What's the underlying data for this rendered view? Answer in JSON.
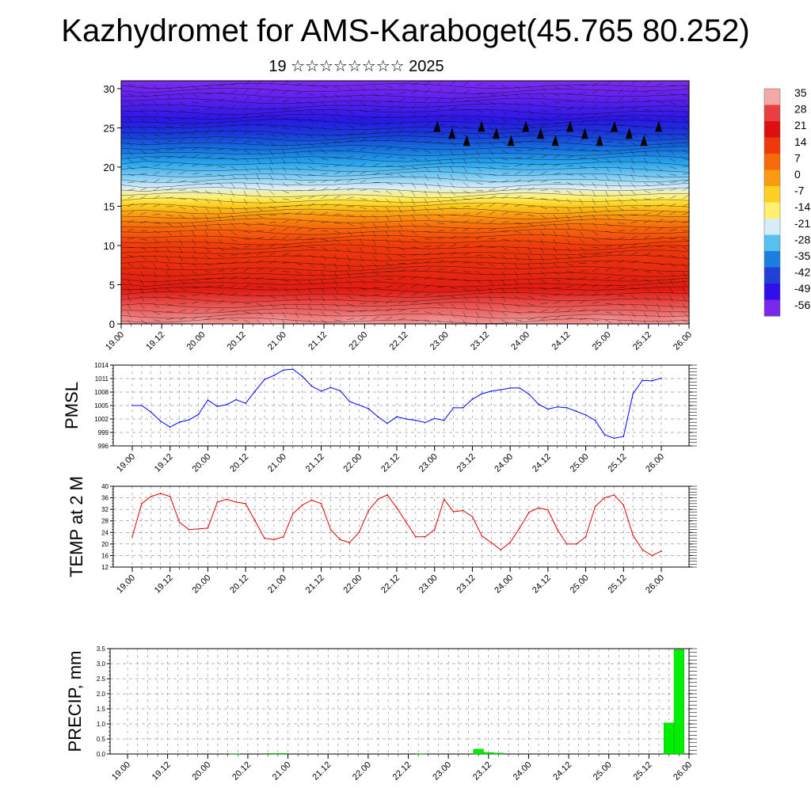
{
  "title": "Kazhydromet for AMS-Karaboget(45.765 80.252)",
  "subtitle": "19 ☆☆☆☆☆☆☆☆ 2025",
  "time_labels": [
    "19.00",
    "19.12",
    "20.00",
    "20.12",
    "21.00",
    "21.12",
    "22.00",
    "22.12",
    "23.00",
    "23.12",
    "24.00",
    "24.12",
    "25.00",
    "25.12",
    "26.00"
  ],
  "chart_data": [
    {
      "type": "heatmap",
      "name": "cross-section",
      "xlabel": "",
      "ylabel": "",
      "x_ticks": [
        "19.00",
        "19.12",
        "20.00",
        "20.12",
        "21.00",
        "21.12",
        "22.00",
        "22.12",
        "23.00",
        "23.12",
        "24.00",
        "24.12",
        "25.00",
        "25.12",
        "26.00"
      ],
      "y_ticks": [
        0,
        5,
        10,
        15,
        20,
        25,
        30
      ],
      "ylim": [
        0,
        31
      ],
      "colorbar": {
        "labels": [
          "35",
          "28",
          "21",
          "14",
          "7",
          "0",
          "-7",
          "-14",
          "-21",
          "-28",
          "-35",
          "-42",
          "-49",
          "-56"
        ],
        "colors": [
          "#f4a8a8",
          "#e84040",
          "#dd1010",
          "#ee3a0a",
          "#f66a0a",
          "#f99c10",
          "#fcd020",
          "#fff070",
          "#d8ecf8",
          "#58c0f0",
          "#1a80e0",
          "#2040d8",
          "#3010e8",
          "#7a28ec"
        ]
      }
    },
    {
      "type": "line",
      "name": "pmsl",
      "ylabel": "PMSL",
      "ylim": [
        996,
        1014
      ],
      "y_ticks": [
        996,
        999,
        1002,
        1005,
        1008,
        1011,
        1014
      ],
      "color": "#0000ff",
      "x": [
        0,
        3,
        6,
        9,
        12,
        15,
        18,
        21,
        24,
        27,
        30,
        33,
        36,
        39,
        42,
        45,
        48,
        51,
        54,
        57,
        60,
        63,
        66,
        69,
        72,
        75,
        78,
        81,
        84,
        87,
        90,
        93,
        96,
        99,
        102,
        105,
        108,
        111,
        114,
        117,
        120,
        123,
        126,
        129,
        132,
        135,
        138,
        141,
        144,
        147,
        150,
        153,
        156,
        159,
        162,
        165,
        168
      ],
      "values": [
        1005,
        1005,
        1003.5,
        1001.5,
        1000.2,
        1001.3,
        1001.8,
        1003,
        1006.2,
        1004.8,
        1005.2,
        1006.3,
        1005.5,
        1008.2,
        1010.8,
        1011.7,
        1012.9,
        1013.1,
        1011.5,
        1009.3,
        1008.2,
        1009,
        1008.3,
        1005.9,
        1005.1,
        1004.3,
        1002.5,
        1001,
        1002.5,
        1002,
        1001.7,
        1001.2,
        1002.1,
        1001.7,
        1004.5,
        1004.5,
        1006.4,
        1007.6,
        1008.2,
        1008.5,
        1008.9,
        1008.9,
        1007.5,
        1005.3,
        1004.2,
        1004.7,
        1004.5,
        1003.7,
        1002.9,
        1001.7,
        998.5,
        997.7,
        998.1,
        1007.6,
        1010.6,
        1010.5,
        1011.1
      ]
    },
    {
      "type": "line",
      "name": "temp2m",
      "ylabel": "TEMP at 2 M",
      "ylim": [
        12,
        40
      ],
      "y_ticks": [
        12,
        16,
        20,
        24,
        28,
        32,
        36,
        40
      ],
      "color": "#e00000",
      "x": [
        0,
        3,
        6,
        9,
        12,
        15,
        18,
        21,
        24,
        27,
        30,
        33,
        36,
        39,
        42,
        45,
        48,
        51,
        54,
        57,
        60,
        63,
        66,
        69,
        72,
        75,
        78,
        81,
        84,
        87,
        90,
        93,
        96,
        99,
        102,
        105,
        108,
        111,
        114,
        117,
        120,
        123,
        126,
        129,
        132,
        135,
        138,
        141,
        144,
        147,
        150,
        153,
        156,
        159,
        162,
        165,
        168
      ],
      "values": [
        22.5,
        34,
        36.5,
        37.5,
        36.5,
        27.5,
        25,
        25.2,
        25.5,
        34.5,
        35.5,
        34.5,
        34,
        28,
        22,
        21.5,
        22.5,
        30.5,
        33.5,
        35.2,
        34,
        25,
        21.5,
        20.5,
        24,
        31.5,
        35.5,
        37,
        32.5,
        27.5,
        22.5,
        22.5,
        25,
        35.5,
        31.2,
        31.6,
        29.5,
        22.8,
        20.5,
        18,
        20.5,
        25.5,
        31,
        32.5,
        31.8,
        25,
        20,
        20,
        22.5,
        33,
        36,
        37,
        33.5,
        23,
        18,
        16,
        17.5
      ]
    },
    {
      "type": "bar",
      "name": "precip",
      "ylabel": "PRECIP, mm",
      "ylim": [
        0,
        3.5
      ],
      "y_ticks": [
        "0.0",
        "0.5",
        "1.0",
        "1.5",
        "2.0",
        "2.5",
        "3.0",
        "3.5"
      ],
      "color": "#00ee00",
      "x": [
        32,
        43,
        46,
        88,
        105,
        108,
        111,
        162,
        165
      ],
      "values": [
        0.01,
        0.02,
        0.02,
        0.01,
        0.16,
        0.05,
        0.03,
        1.03,
        3.47
      ]
    }
  ]
}
